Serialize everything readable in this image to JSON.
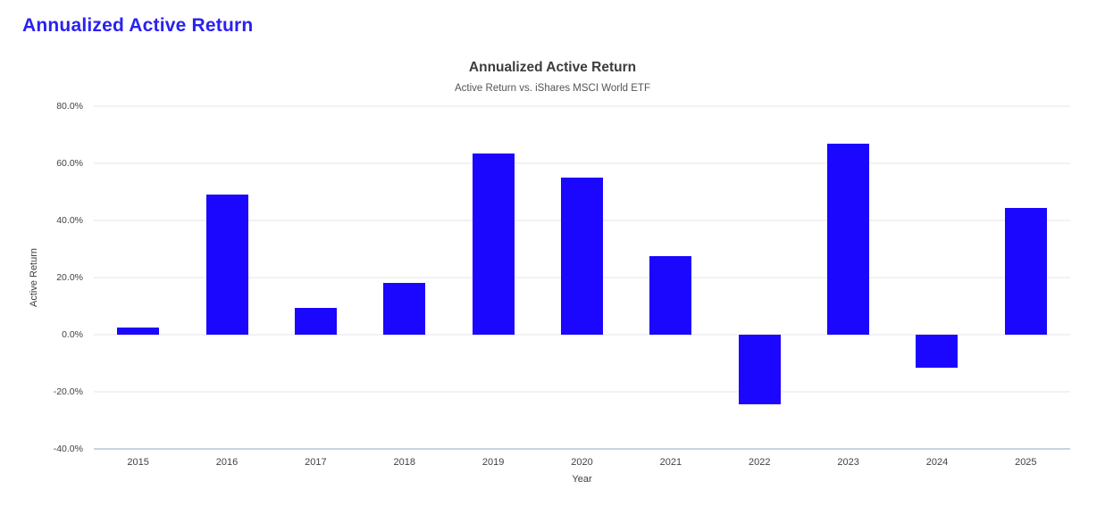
{
  "page": {
    "title": "Annualized Active Return"
  },
  "colors": {
    "accent": "#2a21f0",
    "bar": "#1b06fe",
    "grid": "#e6e6e6",
    "axis_line": "#c9d4e0",
    "title_text": "#3c3c3c",
    "subtitle_text": "#555555",
    "tick_text": "#424242"
  },
  "chart_data": {
    "type": "bar",
    "title": "Annualized Active Return",
    "subtitle": "Active Return vs. iShares MSCI World ETF",
    "xlabel": "Year",
    "ylabel": "Active Return",
    "categories": [
      "2015",
      "2016",
      "2017",
      "2018",
      "2019",
      "2020",
      "2021",
      "2022",
      "2023",
      "2024",
      "2025"
    ],
    "values": [
      2.6,
      49.0,
      9.5,
      18.1,
      63.4,
      55.0,
      27.4,
      -24.5,
      66.8,
      -11.5,
      44.4
    ],
    "value_unit": "percent",
    "ylim": [
      -40,
      80
    ],
    "ytick_step": 20,
    "ytick_format": "one_decimal_percent",
    "grid": true,
    "legend": false,
    "bar_color": "#1b06fe"
  }
}
